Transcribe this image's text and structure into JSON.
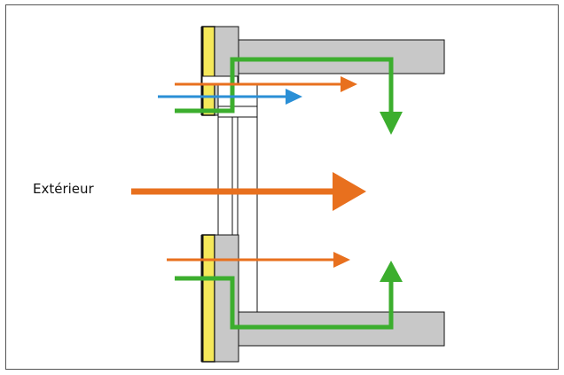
{
  "labels": {
    "exterior": "Extérieur"
  },
  "colors": {
    "wall": "#c8c8c8",
    "insulation": "#f5e85a",
    "outline": "#111111",
    "heat_flow": "#e8701e",
    "air_flow": "#2a8fd6",
    "moisture_flow": "#3cae2e",
    "frame_border": "#555555",
    "background": "#ffffff"
  },
  "legend_semantics": {
    "orange_arrows": "heat-flow",
    "blue_arrow": "air-flow",
    "green_arrows": "moisture-path"
  }
}
